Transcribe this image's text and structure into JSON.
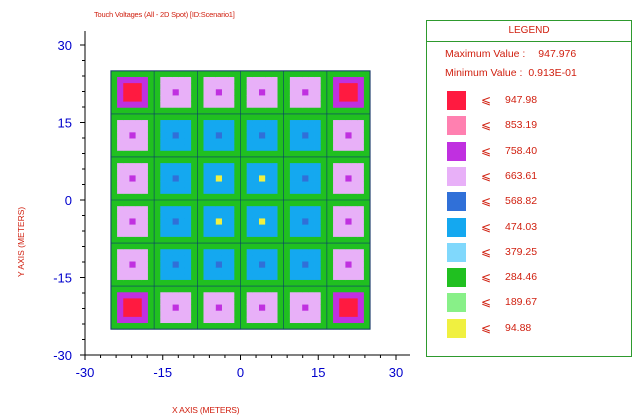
{
  "chart_data": {
    "type": "heatmap",
    "title": "Touch Voltages (All - 2D Spot) [ID:Scenario1]",
    "xlabel": "X AXIS  (METERS)",
    "ylabel": "Y AXIS  (METERS)",
    "xlim": [
      -30,
      30
    ],
    "ylim": [
      -30,
      30
    ],
    "x_ticks": [
      "-30",
      "-15",
      "0",
      "15",
      "30"
    ],
    "y_ticks": [
      "30",
      "15",
      "0",
      "-15",
      "-30"
    ],
    "grid_extent": {
      "x": [
        -25,
        25
      ],
      "y": [
        -25,
        25
      ]
    },
    "grid_cells": 6,
    "legend": {
      "title": "LEGEND",
      "maximum_label": "Maximum Value :",
      "maximum_value": "947.976",
      "minimum_label": "Minimum Value :",
      "minimum_value": "0.913E-01",
      "symbol": "⩽",
      "levels": [
        {
          "value": "947.98",
          "color": "#ff1a40"
        },
        {
          "value": "853.19",
          "color": "#ff80b0"
        },
        {
          "value": "758.40",
          "color": "#c030e0"
        },
        {
          "value": "663.61",
          "color": "#e8b0f8"
        },
        {
          "value": "568.82",
          "color": "#3070d8"
        },
        {
          "value": "474.03",
          "color": "#14a8f0"
        },
        {
          "value": "379.25",
          "color": "#80d8fc"
        },
        {
          "value": "284.46",
          "color": "#20c020"
        },
        {
          "value": "189.67",
          "color": "#88f088"
        },
        {
          "value": "94.88",
          "color": "#f0f040"
        }
      ]
    }
  }
}
